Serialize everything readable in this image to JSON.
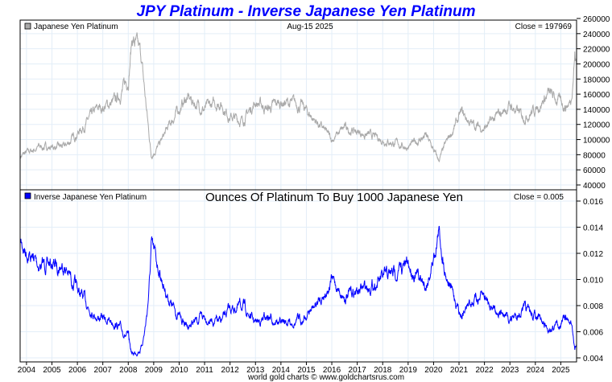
{
  "chart_data": [
    {
      "type": "line",
      "title": "JPY Platinum - Inverse Japanese Yen Platinum",
      "legend": "Japanese Yen Platinum",
      "date": "Aug-15  2025",
      "close_label": "Close = 197969",
      "ylim": [
        40000,
        260000
      ],
      "yticks": [
        "260000",
        "240000",
        "220000",
        "200000",
        "180000",
        "160000",
        "140000",
        "120000",
        "100000",
        "80000",
        "60000",
        "40000"
      ],
      "yvalues": [
        260000,
        240000,
        220000,
        200000,
        180000,
        160000,
        140000,
        120000,
        100000,
        80000,
        60000,
        40000
      ],
      "anchors": [
        [
          2003.75,
          78000
        ],
        [
          2004.5,
          90000
        ],
        [
          2005.5,
          90000
        ],
        [
          2006.3,
          120000
        ],
        [
          2006.8,
          140000
        ],
        [
          2007.5,
          150000
        ],
        [
          2008.0,
          180000
        ],
        [
          2008.15,
          235000
        ],
        [
          2008.5,
          210000
        ],
        [
          2008.9,
          80000
        ],
        [
          2009.2,
          92000
        ],
        [
          2009.8,
          130000
        ],
        [
          2010.3,
          155000
        ],
        [
          2011,
          140000
        ],
        [
          2011.6,
          150000
        ],
        [
          2012,
          130000
        ],
        [
          2012.5,
          125000
        ],
        [
          2013,
          150000
        ],
        [
          2013.5,
          140000
        ],
        [
          2014,
          150000
        ],
        [
          2014.8,
          145000
        ],
        [
          2015.5,
          120000
        ],
        [
          2016,
          100000
        ],
        [
          2016.5,
          115000
        ],
        [
          2017,
          110000
        ],
        [
          2017.5,
          105000
        ],
        [
          2018.5,
          95000
        ],
        [
          2019,
          90000
        ],
        [
          2019.7,
          105000
        ],
        [
          2020.2,
          72000
        ],
        [
          2020.5,
          95000
        ],
        [
          2021.1,
          135000
        ],
        [
          2021.5,
          120000
        ],
        [
          2022,
          115000
        ],
        [
          2022.5,
          130000
        ],
        [
          2023,
          145000
        ],
        [
          2023.5,
          130000
        ],
        [
          2024,
          140000
        ],
        [
          2024.5,
          160000
        ],
        [
          2025.2,
          145000
        ],
        [
          2025.4,
          150000
        ],
        [
          2025.55,
          215000
        ],
        [
          2025.62,
          197969
        ]
      ],
      "color": "#a9a9a9"
    },
    {
      "type": "line",
      "subtitle": "Ounces Of Platinum To Buy 1000 Japanese Yen",
      "legend": "Inverse Japanese Yen Platinum",
      "close_label": "Close = 0.005",
      "ylim": [
        0.004,
        0.016
      ],
      "yticks": [
        "0.016",
        "0.014",
        "0.012",
        "0.010",
        "0.008",
        "0.006",
        "0.004"
      ],
      "yvalues": [
        0.016,
        0.014,
        0.012,
        0.01,
        0.008,
        0.006,
        0.004
      ],
      "formula": "1000 / price",
      "color": "#0000ff"
    }
  ],
  "xaxis": {
    "range": [
      2003.75,
      2025.62
    ],
    "ticks": [
      "2004",
      "2005",
      "2006",
      "2007",
      "2008",
      "2009",
      "2010",
      "2011",
      "2012",
      "2013",
      "2014",
      "2015",
      "2016",
      "2017",
      "2018",
      "2019",
      "2020",
      "2021",
      "2022",
      "2023",
      "2024",
      "2025"
    ]
  },
  "footer": "world gold charts © www.goldchartsrus.com"
}
